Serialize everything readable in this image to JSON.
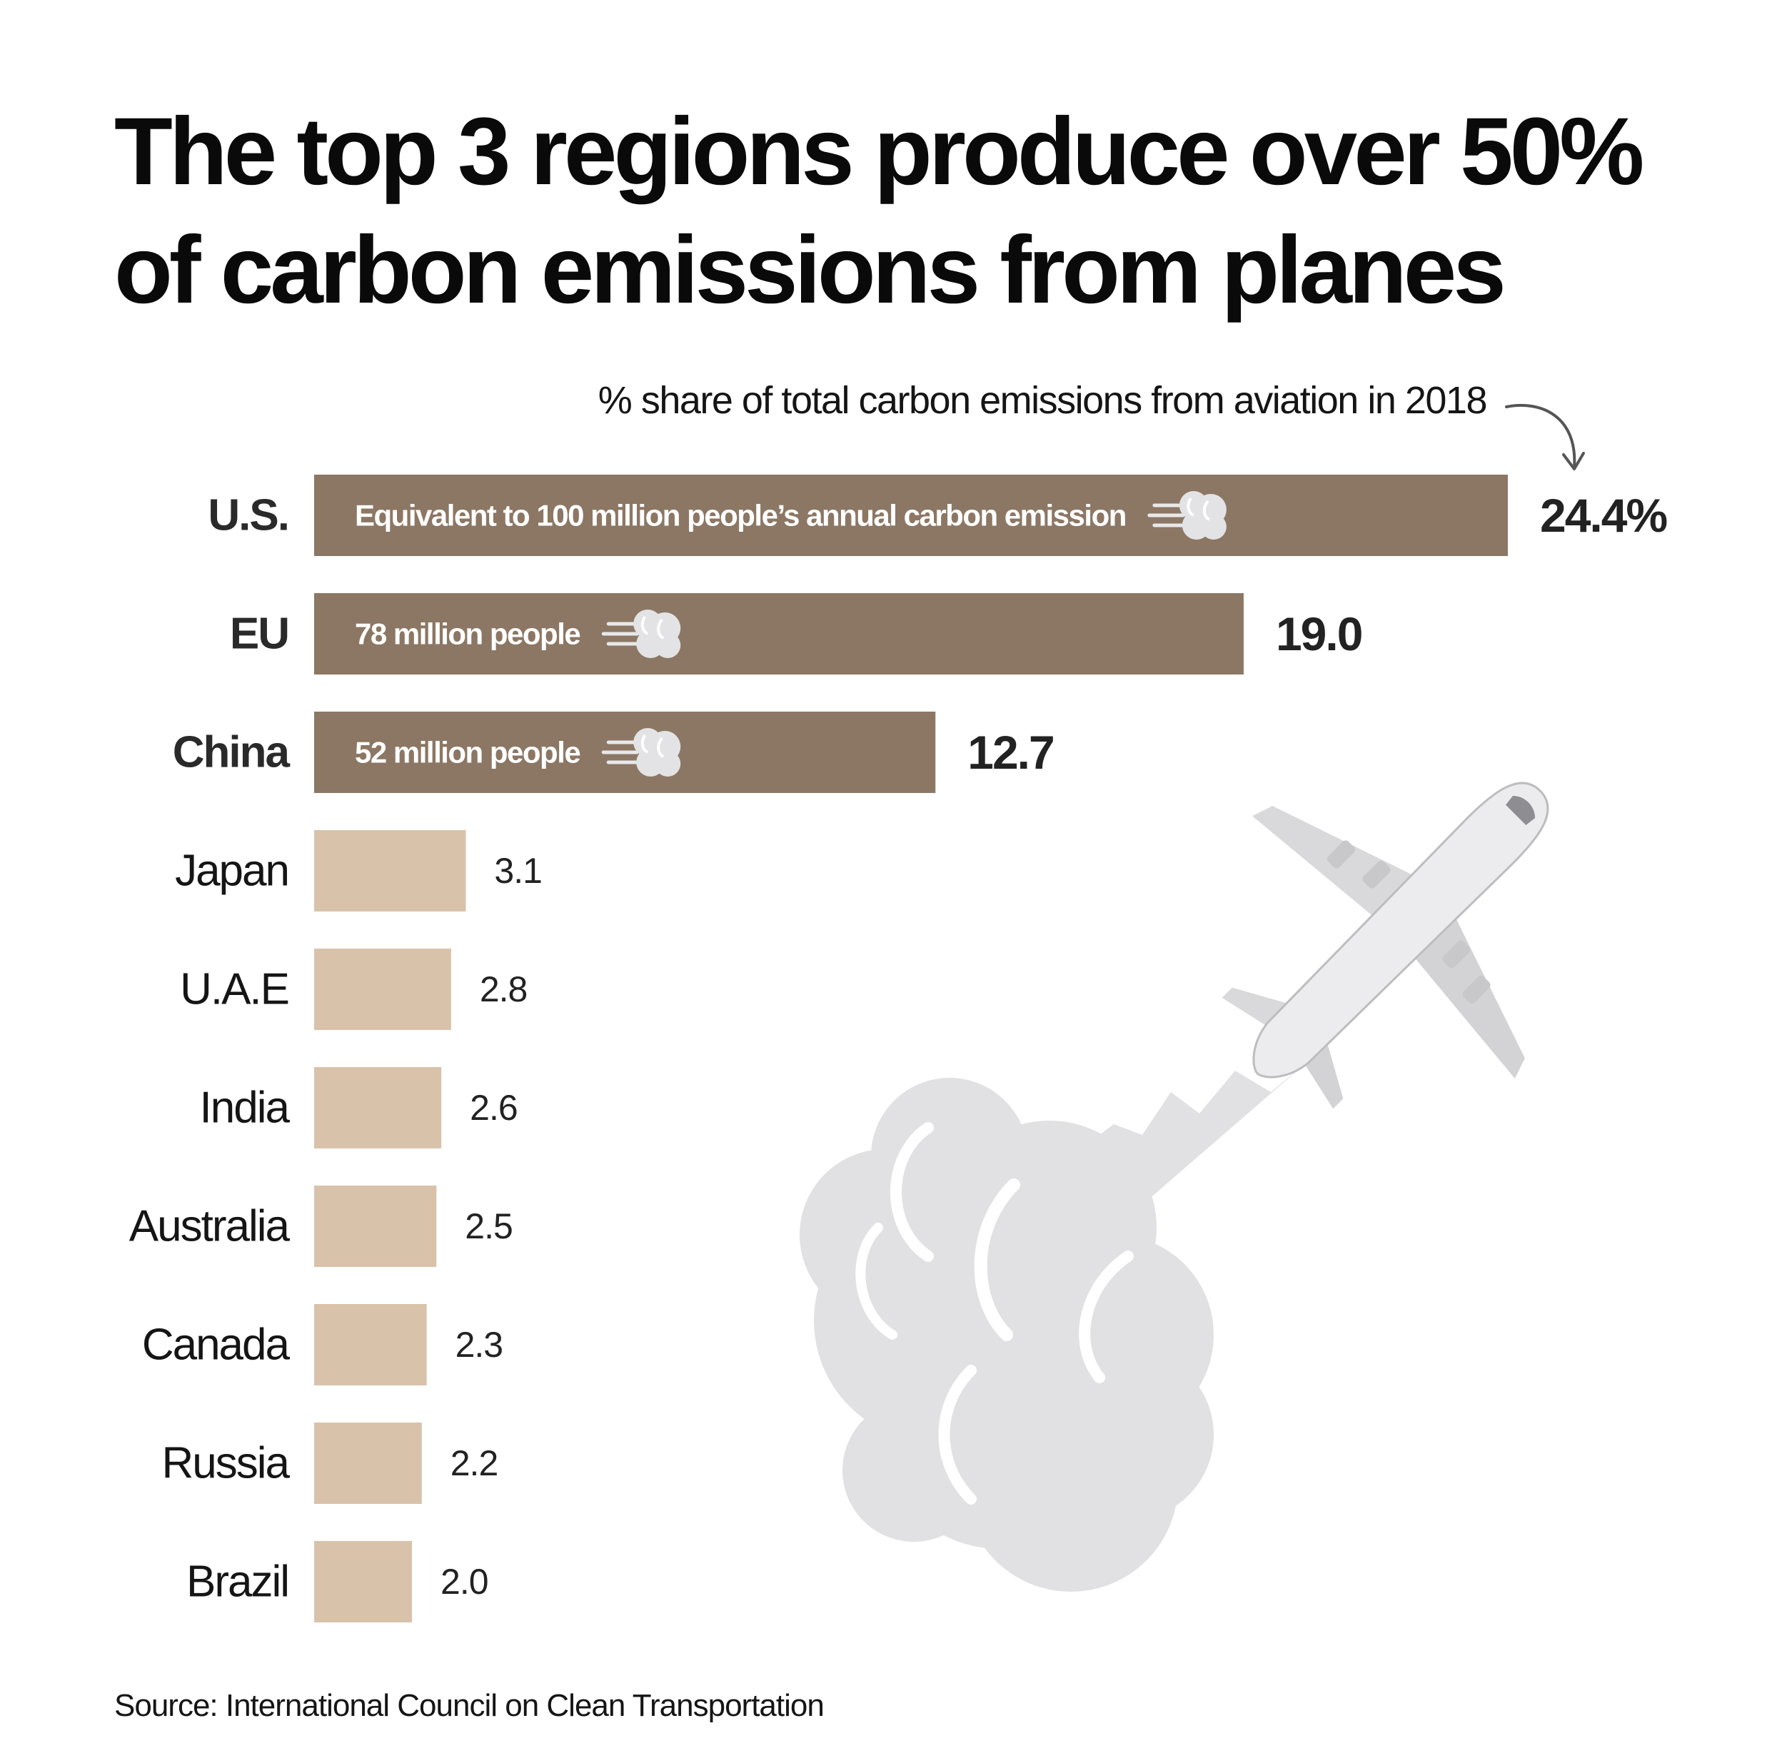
{
  "title": "The top 3 regions produce over 50% of carbon emissions from planes",
  "source": "Source: International Council on Clean Transportation",
  "colors": {
    "top": "#8c7764",
    "rest": "#d9c2aa",
    "cloud": "#e1e1e3",
    "text": "#111111"
  },
  "chart_data": {
    "type": "bar",
    "orientation": "horizontal",
    "subtitle": "% share of total carbon emissions from aviation in 2018",
    "categories": [
      "U.S.",
      "EU",
      "China",
      "Japan",
      "U.A.E",
      "India",
      "Australia",
      "Canada",
      "Russia",
      "Brazil"
    ],
    "values": [
      24.4,
      19.0,
      12.7,
      3.1,
      2.8,
      2.6,
      2.5,
      2.3,
      2.2,
      2.0
    ],
    "value_labels": [
      "24.4%",
      "19.0",
      "12.7",
      "3.1",
      "2.8",
      "2.6",
      "2.5",
      "2.3",
      "2.2",
      "2.0"
    ],
    "highlighted": [
      true,
      true,
      true,
      false,
      false,
      false,
      false,
      false,
      false,
      false
    ],
    "annotations": [
      "Equivalent to 100 million people’s annual carbon emission",
      "78 million people",
      "52 million people",
      "",
      "",
      "",
      "",
      "",
      "",
      ""
    ],
    "icons": [
      "smoke-cloud-icon",
      "airplane-icon",
      "exhaust-cloud-icon"
    ]
  }
}
